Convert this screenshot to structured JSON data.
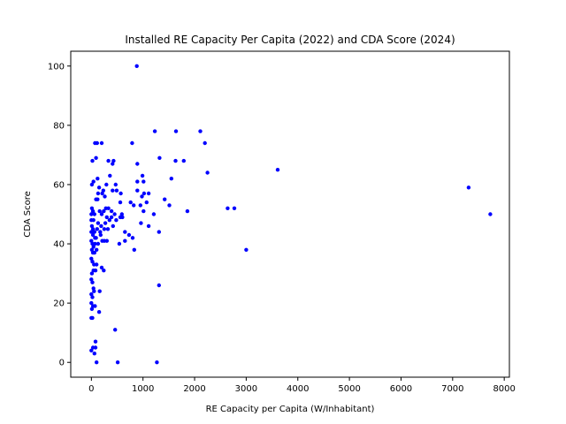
{
  "chart_data": {
    "type": "scatter",
    "title": "Installed RE Capacity Per Capita (2022) and CDA Score (2024)",
    "xlabel": "RE Capacity per Capita (W/Inhabitant)",
    "ylabel": "CDA Score",
    "xlim": [
      -400,
      8100
    ],
    "ylim": [
      -5,
      105
    ],
    "xticks": [
      0,
      1000,
      2000,
      3000,
      4000,
      5000,
      6000,
      7000,
      8000
    ],
    "yticks": [
      0,
      20,
      40,
      60,
      80,
      100
    ],
    "grid": false,
    "marker_color": "#0000ff",
    "points": [
      [
        880,
        100
      ],
      [
        1230,
        78
      ],
      [
        1640,
        78
      ],
      [
        2110,
        78
      ],
      [
        2200,
        74
      ],
      [
        70,
        74
      ],
      [
        110,
        74
      ],
      [
        200,
        74
      ],
      [
        790,
        74
      ],
      [
        20,
        68
      ],
      [
        90,
        69
      ],
      [
        330,
        68
      ],
      [
        430,
        68
      ],
      [
        410,
        67
      ],
      [
        890,
        67
      ],
      [
        1320,
        69
      ],
      [
        1630,
        68
      ],
      [
        1790,
        68
      ],
      [
        3610,
        65
      ],
      [
        2250,
        64
      ],
      [
        120,
        62
      ],
      [
        360,
        63
      ],
      [
        470,
        60
      ],
      [
        290,
        60
      ],
      [
        990,
        63
      ],
      [
        10,
        60
      ],
      [
        40,
        61
      ],
      [
        150,
        59
      ],
      [
        230,
        58
      ],
      [
        130,
        57
      ],
      [
        210,
        57
      ],
      [
        260,
        56
      ],
      [
        410,
        58
      ],
      [
        490,
        58
      ],
      [
        570,
        57
      ],
      [
        890,
        58
      ],
      [
        1020,
        57
      ],
      [
        1110,
        57
      ],
      [
        1010,
        61
      ],
      [
        890,
        61
      ],
      [
        1420,
        55
      ],
      [
        1550,
        62
      ],
      [
        1510,
        53
      ],
      [
        90,
        55
      ],
      [
        120,
        55
      ],
      [
        560,
        54
      ],
      [
        760,
        54
      ],
      [
        980,
        56
      ],
      [
        820,
        53
      ],
      [
        950,
        53
      ],
      [
        1070,
        54
      ],
      [
        2640,
        52
      ],
      [
        2770,
        52
      ],
      [
        7310,
        59
      ],
      [
        7730,
        50
      ],
      [
        10,
        52
      ],
      [
        30,
        51
      ],
      [
        0,
        50
      ],
      [
        60,
        50
      ],
      [
        160,
        51
      ],
      [
        240,
        51
      ],
      [
        280,
        52
      ],
      [
        330,
        52
      ],
      [
        390,
        51
      ],
      [
        200,
        50
      ],
      [
        300,
        49
      ],
      [
        390,
        49
      ],
      [
        450,
        50
      ],
      [
        480,
        48
      ],
      [
        560,
        49
      ],
      [
        590,
        50
      ],
      [
        1860,
        51
      ],
      [
        1010,
        51
      ],
      [
        1210,
        50
      ],
      [
        0,
        48
      ],
      [
        40,
        48
      ],
      [
        130,
        47
      ],
      [
        190,
        46
      ],
      [
        270,
        47
      ],
      [
        350,
        48
      ],
      [
        420,
        46
      ],
      [
        600,
        49
      ],
      [
        650,
        44
      ],
      [
        960,
        47
      ],
      [
        1110,
        46
      ],
      [
        1310,
        44
      ],
      [
        10,
        46
      ],
      [
        30,
        45
      ],
      [
        60,
        44
      ],
      [
        110,
        45
      ],
      [
        170,
        44
      ],
      [
        250,
        45
      ],
      [
        320,
        45
      ],
      [
        0,
        44
      ],
      [
        30,
        43
      ],
      [
        70,
        42
      ],
      [
        90,
        42
      ],
      [
        180,
        43
      ],
      [
        0,
        41
      ],
      [
        20,
        40
      ],
      [
        40,
        39
      ],
      [
        70,
        40
      ],
      [
        130,
        40
      ],
      [
        210,
        41
      ],
      [
        250,
        41
      ],
      [
        300,
        41
      ],
      [
        650,
        41
      ],
      [
        730,
        43
      ],
      [
        800,
        42
      ],
      [
        540,
        40
      ],
      [
        10,
        38
      ],
      [
        30,
        37
      ],
      [
        60,
        37
      ],
      [
        100,
        38
      ],
      [
        830,
        38
      ],
      [
        3000,
        38
      ],
      [
        0,
        35
      ],
      [
        20,
        34
      ],
      [
        50,
        33
      ],
      [
        100,
        33
      ],
      [
        200,
        32
      ],
      [
        240,
        31
      ],
      [
        80,
        31
      ],
      [
        40,
        31
      ],
      [
        10,
        30
      ],
      [
        0,
        28
      ],
      [
        20,
        27
      ],
      [
        40,
        25
      ],
      [
        50,
        24
      ],
      [
        0,
        23
      ],
      [
        20,
        22
      ],
      [
        160,
        24
      ],
      [
        1310,
        26
      ],
      [
        0,
        20
      ],
      [
        30,
        19
      ],
      [
        70,
        19
      ],
      [
        10,
        18
      ],
      [
        150,
        17
      ],
      [
        0,
        15
      ],
      [
        20,
        15
      ],
      [
        460,
        11
      ],
      [
        80,
        7
      ],
      [
        80,
        5
      ],
      [
        30,
        5
      ],
      [
        0,
        4
      ],
      [
        60,
        3
      ],
      [
        100,
        0
      ],
      [
        510,
        0
      ],
      [
        1270,
        0
      ]
    ]
  }
}
